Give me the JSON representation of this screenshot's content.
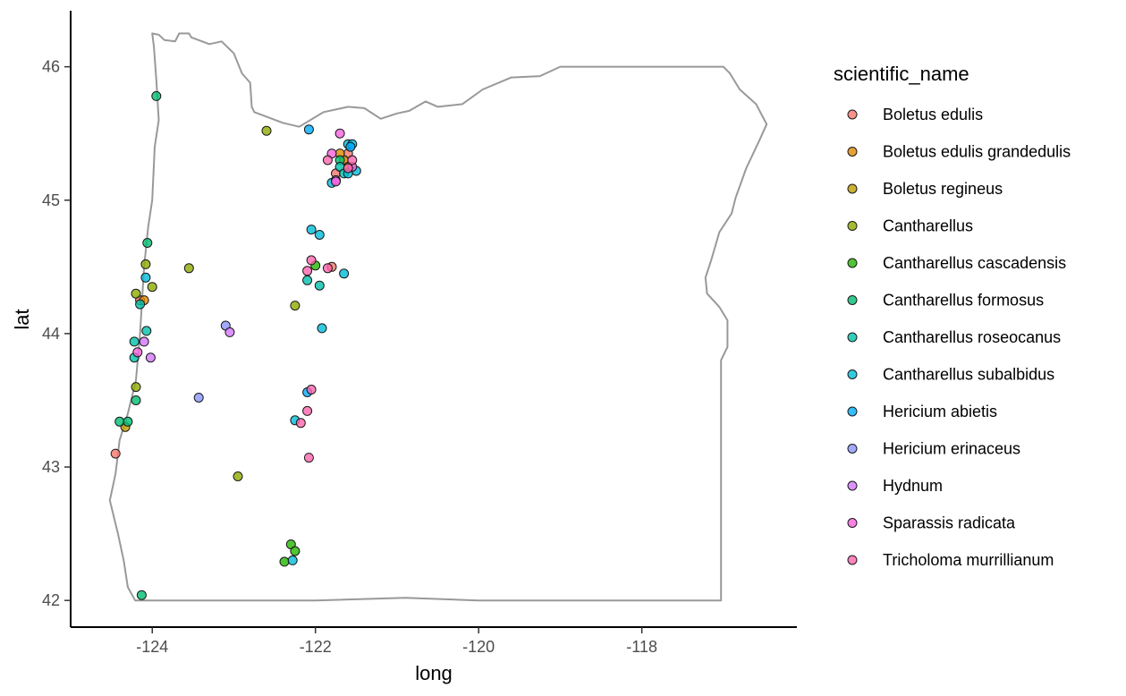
{
  "chart_data": {
    "type": "scatter",
    "xlabel": "long",
    "ylabel": "lat",
    "xlim": [
      -125,
      -116.1
    ],
    "ylim": [
      41.8,
      46.42
    ],
    "xticks": [
      -124,
      -122,
      -120,
      -118
    ],
    "yticks": [
      42,
      43,
      44,
      45,
      46
    ],
    "grid": false,
    "legend": {
      "title": "scientific_name",
      "position": "right"
    },
    "series": [
      {
        "name": "Boletus edulis",
        "color": "#F8766D",
        "points": [
          [
            -124.45,
            43.1
          ],
          [
            -124.15,
            44.25
          ],
          [
            -121.8,
            44.5
          ],
          [
            -121.6,
            45.35
          ],
          [
            -121.75,
            45.2
          ]
        ]
      },
      {
        "name": "Boletus edulis grandedulis",
        "color": "#E18A00",
        "points": [
          [
            -124.1,
            44.25
          ],
          [
            -121.65,
            45.3
          ],
          [
            -121.7,
            45.35
          ]
        ]
      },
      {
        "name": "Boletus regineus",
        "color": "#BE9C00",
        "points": [
          [
            -124.33,
            43.3
          ],
          [
            -121.6,
            45.25
          ]
        ]
      },
      {
        "name": "Cantharellus",
        "color": "#8CAB00",
        "points": [
          [
            -122.6,
            45.52
          ],
          [
            -124.08,
            44.52
          ],
          [
            -123.55,
            44.49
          ],
          [
            -124.2,
            44.3
          ],
          [
            -124.0,
            44.35
          ],
          [
            -122.25,
            44.21
          ],
          [
            -124.2,
            43.6
          ],
          [
            -122.95,
            42.93
          ]
        ]
      },
      {
        "name": "Cantharellus cascadensis",
        "color": "#24B700",
        "points": [
          [
            -122.0,
            44.51
          ],
          [
            -122.3,
            42.42
          ],
          [
            -122.25,
            42.37
          ],
          [
            -122.38,
            42.29
          ]
        ]
      },
      {
        "name": "Cantharellus formosus",
        "color": "#00BE70",
        "points": [
          [
            -123.95,
            45.78
          ],
          [
            -124.06,
            44.68
          ],
          [
            -124.2,
            43.5
          ],
          [
            -124.4,
            43.34
          ],
          [
            -124.3,
            43.34
          ],
          [
            -124.13,
            42.04
          ],
          [
            -121.7,
            45.3
          ]
        ]
      },
      {
        "name": "Cantharellus roseocanus",
        "color": "#00C1AB",
        "points": [
          [
            -124.15,
            44.22
          ],
          [
            -124.07,
            44.02
          ],
          [
            -124.22,
            43.94
          ],
          [
            -124.22,
            43.82
          ],
          [
            -122.1,
            44.4
          ],
          [
            -121.95,
            44.36
          ],
          [
            -121.7,
            45.25
          ],
          [
            -121.65,
            45.2
          ]
        ]
      },
      {
        "name": "Cantharellus subalbidus",
        "color": "#00BBDA",
        "points": [
          [
            -124.08,
            44.42
          ],
          [
            -122.05,
            44.78
          ],
          [
            -121.95,
            44.74
          ],
          [
            -121.65,
            44.45
          ],
          [
            -121.92,
            44.04
          ],
          [
            -122.25,
            43.35
          ],
          [
            -122.28,
            42.3
          ],
          [
            -121.5,
            45.22
          ],
          [
            -121.6,
            45.2
          ],
          [
            -121.8,
            45.13
          ],
          [
            -121.6,
            45.42
          ],
          [
            -121.55,
            45.42
          ]
        ]
      },
      {
        "name": "Hericium abietis",
        "color": "#00ACFC",
        "points": [
          [
            -122.08,
            45.53
          ],
          [
            -122.1,
            43.56
          ],
          [
            -121.57,
            45.4
          ]
        ]
      },
      {
        "name": "Hericium erinaceus",
        "color": "#8B93FF",
        "points": [
          [
            -123.1,
            44.06
          ],
          [
            -123.43,
            43.52
          ]
        ]
      },
      {
        "name": "Hydnum",
        "color": "#D575FE",
        "points": [
          [
            -124.1,
            43.94
          ],
          [
            -124.02,
            43.82
          ],
          [
            -123.05,
            44.01
          ],
          [
            -121.75,
            45.15
          ]
        ]
      },
      {
        "name": "Sparassis radicata",
        "color": "#F962DD",
        "points": [
          [
            -124.18,
            43.86
          ],
          [
            -121.7,
            45.5
          ],
          [
            -121.8,
            45.35
          ],
          [
            -121.55,
            45.25
          ],
          [
            -121.75,
            45.14
          ]
        ]
      },
      {
        "name": "Tricholoma murrillianum",
        "color": "#FF65AC",
        "points": [
          [
            -122.05,
            44.55
          ],
          [
            -122.1,
            44.47
          ],
          [
            -121.85,
            44.49
          ],
          [
            -122.05,
            43.58
          ],
          [
            -122.1,
            43.42
          ],
          [
            -122.18,
            43.33
          ],
          [
            -122.08,
            43.07
          ],
          [
            -121.55,
            45.3
          ],
          [
            -121.85,
            45.3
          ],
          [
            -121.6,
            45.24
          ]
        ]
      }
    ],
    "outline": {
      "name": "Oregon state border",
      "color": "#999999",
      "points": [
        [
          -124.0,
          46.25
        ],
        [
          -123.92,
          46.24
        ],
        [
          -123.85,
          46.2
        ],
        [
          -123.72,
          46.19
        ],
        [
          -123.67,
          46.25
        ],
        [
          -123.55,
          46.25
        ],
        [
          -123.52,
          46.22
        ],
        [
          -123.3,
          46.17
        ],
        [
          -123.15,
          46.19
        ],
        [
          -123.0,
          46.1
        ],
        [
          -122.9,
          45.95
        ],
        [
          -122.8,
          45.88
        ],
        [
          -122.78,
          45.7
        ],
        [
          -122.75,
          45.66
        ],
        [
          -122.4,
          45.58
        ],
        [
          -122.2,
          45.55
        ],
        [
          -121.9,
          45.66
        ],
        [
          -121.6,
          45.7
        ],
        [
          -121.4,
          45.69
        ],
        [
          -121.2,
          45.61
        ],
        [
          -121.0,
          45.65
        ],
        [
          -120.85,
          45.67
        ],
        [
          -120.65,
          45.74
        ],
        [
          -120.5,
          45.7
        ],
        [
          -120.2,
          45.72
        ],
        [
          -119.95,
          45.83
        ],
        [
          -119.6,
          45.92
        ],
        [
          -119.25,
          45.93
        ],
        [
          -119.0,
          46.0
        ],
        [
          -118.5,
          46.0
        ],
        [
          -117.5,
          46.0
        ],
        [
          -117.0,
          46.0
        ],
        [
          -116.92,
          45.95
        ],
        [
          -116.8,
          45.83
        ],
        [
          -116.6,
          45.72
        ],
        [
          -116.47,
          45.57
        ],
        [
          -116.55,
          45.46
        ],
        [
          -116.72,
          45.24
        ],
        [
          -116.85,
          45.02
        ],
        [
          -116.9,
          44.9
        ],
        [
          -117.05,
          44.76
        ],
        [
          -117.15,
          44.55
        ],
        [
          -117.22,
          44.42
        ],
        [
          -117.2,
          44.3
        ],
        [
          -117.05,
          44.2
        ],
        [
          -116.95,
          44.1
        ],
        [
          -116.95,
          43.9
        ],
        [
          -117.03,
          43.8
        ],
        [
          -117.03,
          42.0
        ],
        [
          -118.5,
          42.0
        ],
        [
          -120.0,
          42.0
        ],
        [
          -120.9,
          42.02
        ],
        [
          -122.0,
          42.0
        ],
        [
          -123.0,
          42.0
        ],
        [
          -124.21,
          42.0
        ],
        [
          -124.3,
          42.1
        ],
        [
          -124.35,
          42.3
        ],
        [
          -124.42,
          42.5
        ],
        [
          -124.52,
          42.75
        ],
        [
          -124.45,
          42.95
        ],
        [
          -124.4,
          43.2
        ],
        [
          -124.3,
          43.4
        ],
        [
          -124.2,
          43.65
        ],
        [
          -124.15,
          44.0
        ],
        [
          -124.1,
          44.5
        ],
        [
          -124.05,
          44.8
        ],
        [
          -124.0,
          45.0
        ],
        [
          -123.97,
          45.4
        ],
        [
          -123.92,
          45.6
        ],
        [
          -123.95,
          45.9
        ],
        [
          -123.98,
          46.15
        ],
        [
          -124.0,
          46.25
        ]
      ]
    }
  }
}
